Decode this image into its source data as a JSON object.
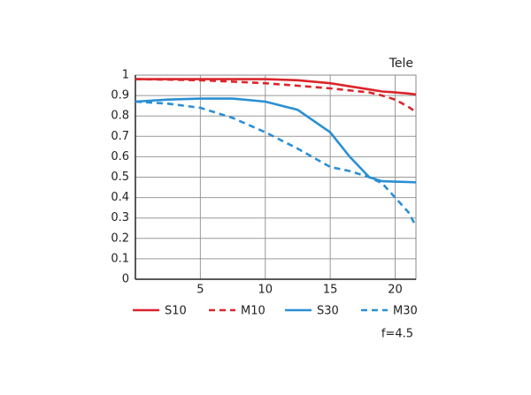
{
  "chart_data": {
    "type": "line",
    "title": "Tele",
    "annotation": "f=4.5",
    "x": [
      0,
      2.5,
      5,
      7.5,
      10,
      12.5,
      15,
      16.5,
      18,
      19,
      20,
      21,
      21.6
    ],
    "series": [
      {
        "name": "S10",
        "color": "#d9262b",
        "style": "solid",
        "values": [
          0.98,
          0.98,
          0.98,
          0.98,
          0.98,
          0.975,
          0.96,
          0.945,
          0.93,
          0.92,
          0.915,
          0.91,
          0.905
        ]
      },
      {
        "name": "M10",
        "color": "#d9262b",
        "style": "dashed",
        "values": [
          0.98,
          0.978,
          0.975,
          0.968,
          0.96,
          0.948,
          0.935,
          0.925,
          0.915,
          0.9,
          0.88,
          0.845,
          0.82
        ]
      },
      {
        "name": "S30",
        "color": "#2a8fd4",
        "style": "solid",
        "values": [
          0.87,
          0.88,
          0.885,
          0.885,
          0.87,
          0.83,
          0.72,
          0.6,
          0.5,
          0.48,
          0.478,
          0.476,
          0.475
        ]
      },
      {
        "name": "M30",
        "color": "#2a8fd4",
        "style": "dashed",
        "values": [
          0.87,
          0.86,
          0.84,
          0.79,
          0.72,
          0.64,
          0.55,
          0.53,
          0.5,
          0.47,
          0.4,
          0.33,
          0.26
        ]
      }
    ],
    "xlim": [
      0,
      21.6
    ],
    "xticks": [
      5,
      10,
      15,
      20
    ],
    "ylim": [
      0,
      1
    ],
    "yticks": [
      0,
      0.1,
      0.2,
      0.3,
      0.4,
      0.5,
      0.6,
      0.7,
      0.8,
      0.9,
      1
    ],
    "grid": true
  }
}
